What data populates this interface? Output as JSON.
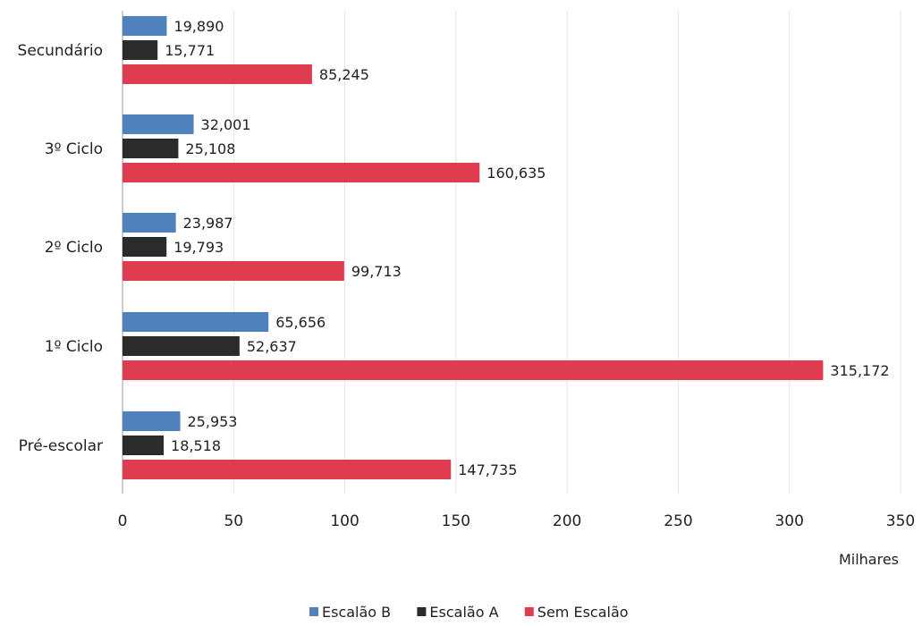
{
  "chart_data": {
    "type": "bar",
    "orientation": "horizontal",
    "categories": [
      "Secundário",
      "3º Ciclo",
      "2º Ciclo",
      "1º Ciclo",
      "Pré-escolar"
    ],
    "series": [
      {
        "name": "Escalão B",
        "color": "#4f81bd",
        "values": [
          19.89,
          32.001,
          23.987,
          65.656,
          25.953
        ],
        "labels": [
          "19,890",
          "32,001",
          "23,987",
          "65,656",
          "25,953"
        ]
      },
      {
        "name": "Escalão A",
        "color": "#2b2b2b",
        "values": [
          15.771,
          25.108,
          19.793,
          52.637,
          18.518
        ],
        "labels": [
          "15,771",
          "25,108",
          "19,793",
          "52,637",
          "18,518"
        ]
      },
      {
        "name": "Sem Escalão",
        "color": "#e03c50",
        "values": [
          85.245,
          160.635,
          99.713,
          315.172,
          147.735
        ],
        "labels": [
          "85,245",
          "160,635",
          "99,713",
          "315,172",
          "147,735"
        ]
      }
    ],
    "xlim": [
      0,
      350
    ],
    "x_ticks": [
      0,
      50,
      100,
      150,
      200,
      250,
      300,
      350
    ],
    "x_tick_labels": [
      "0",
      "50",
      "100",
      "150",
      "200",
      "250",
      "300",
      "350"
    ],
    "unit_label": "Milhares",
    "grid": true,
    "legend_position": "bottom"
  }
}
